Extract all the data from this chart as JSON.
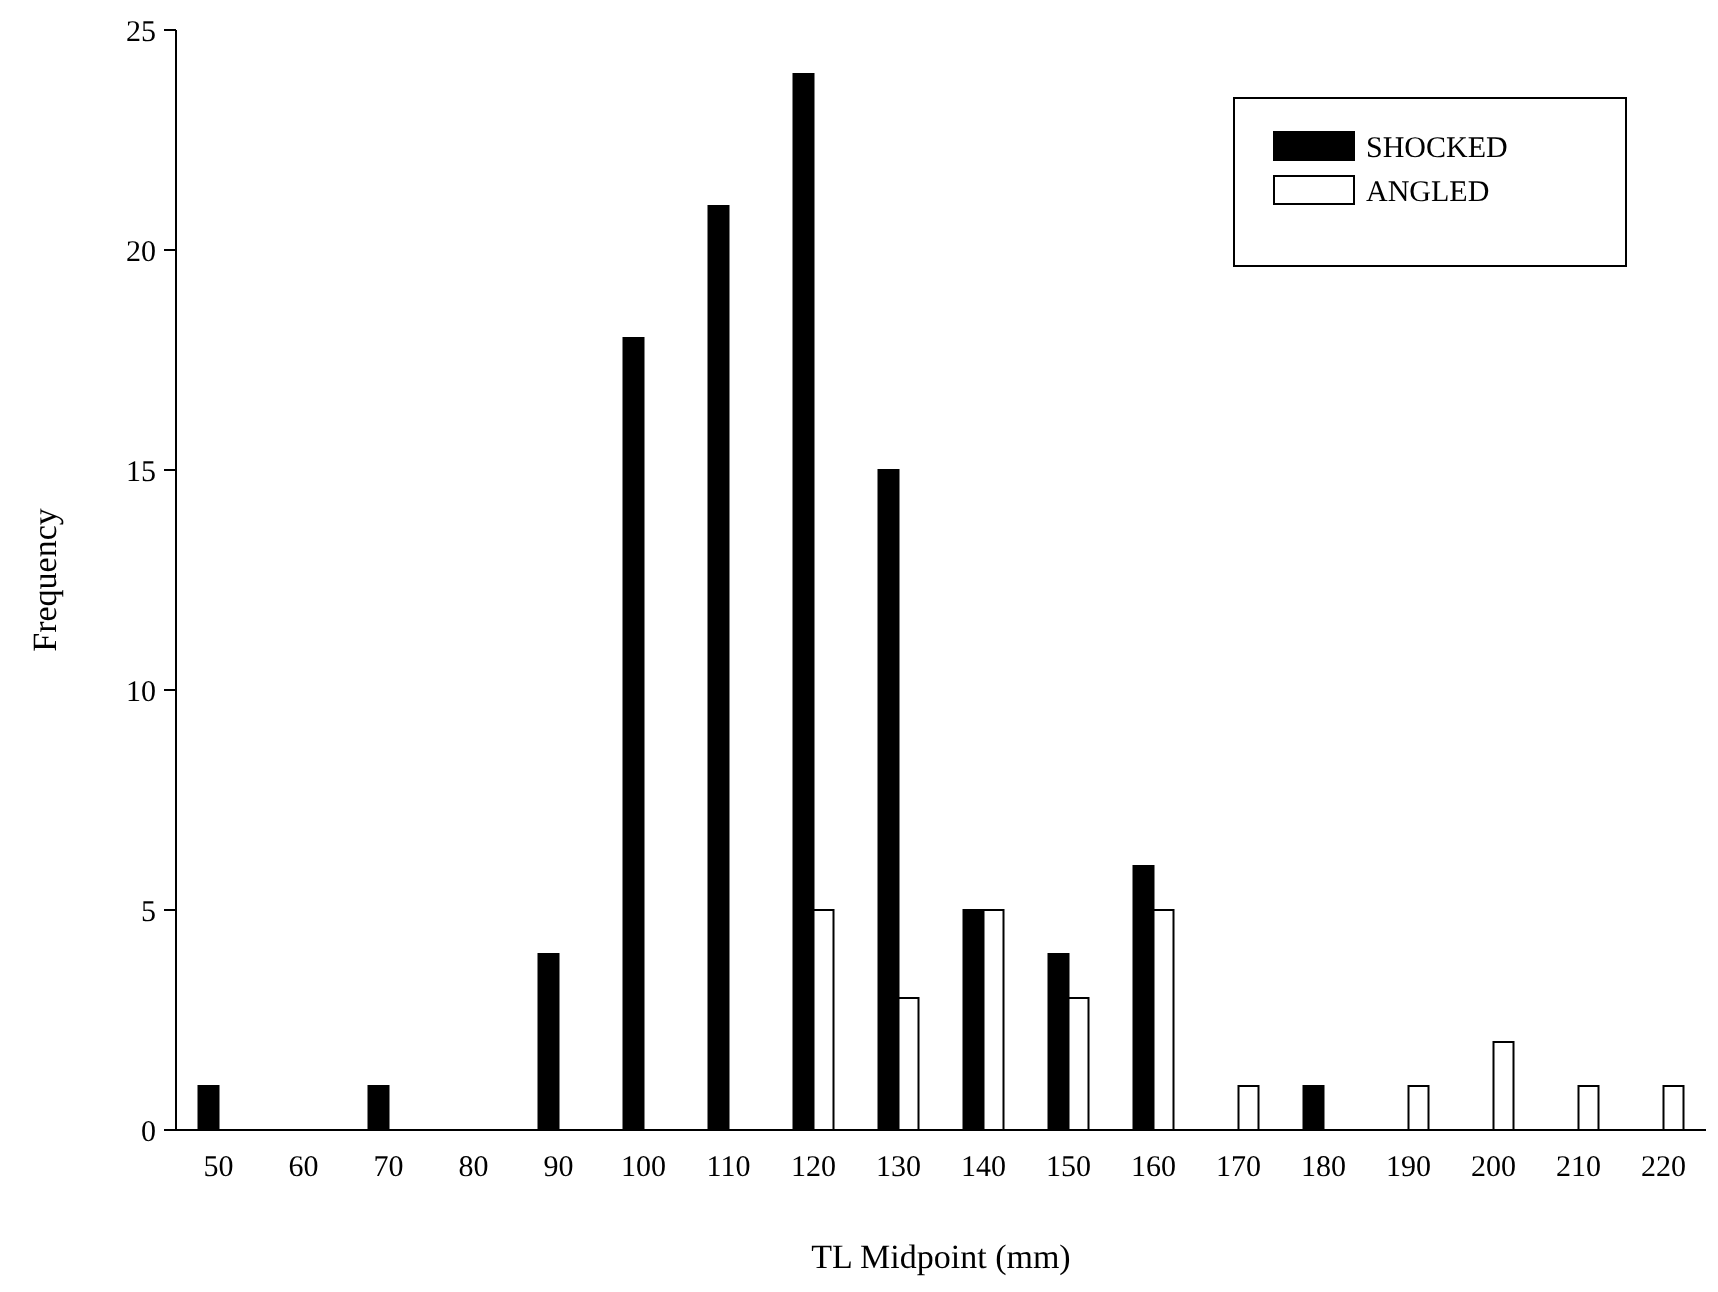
{
  "chart_data": {
    "type": "bar",
    "xlabel": "TL Midpoint (mm)",
    "ylabel": "Frequency",
    "categories": [
      "50",
      "60",
      "70",
      "80",
      "90",
      "100",
      "110",
      "120",
      "130",
      "140",
      "150",
      "160",
      "170",
      "180",
      "190",
      "200",
      "210",
      "220"
    ],
    "series": [
      {
        "name": "SHOCKED",
        "color": "#000000",
        "values": [
          1,
          0,
          1,
          0,
          4,
          18,
          21,
          24,
          15,
          5,
          4,
          6,
          0,
          1,
          0,
          0,
          0,
          0
        ]
      },
      {
        "name": "ANGLED",
        "color": "#ffffff",
        "values": [
          0,
          0,
          0,
          0,
          0,
          0,
          0,
          5,
          3,
          5,
          3,
          5,
          1,
          0,
          1,
          2,
          1,
          1
        ]
      }
    ],
    "ylim": [
      0,
      25
    ],
    "yticks": [
      0,
      5,
      10,
      15,
      20,
      25
    ],
    "legend": "top right",
    "grid": false
  }
}
